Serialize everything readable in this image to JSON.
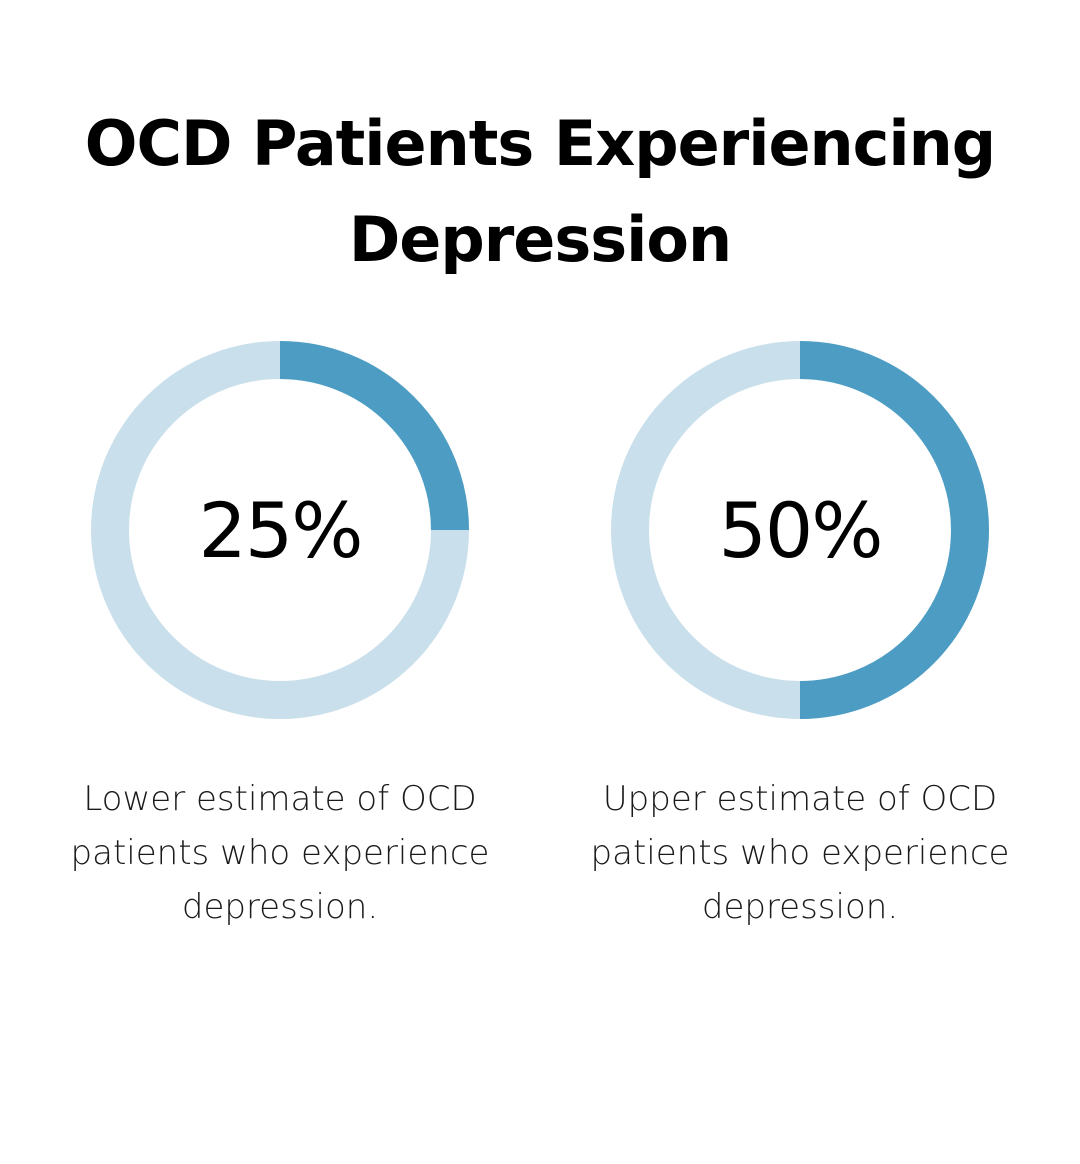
{
  "title": "OCD Patients Experiencing Depression",
  "colors": {
    "track": "#c9e0ec",
    "fill": "#4d9cc4",
    "text": "#000000"
  },
  "chart_data": [
    {
      "type": "pie",
      "value_label": "25%",
      "value": 25,
      "max": 100,
      "caption": "Lower estimate of OCD patients who experience depression."
    },
    {
      "type": "pie",
      "value_label": "50%",
      "value": 50,
      "max": 100,
      "caption": "Upper estimate of OCD patients who experience depression."
    }
  ]
}
